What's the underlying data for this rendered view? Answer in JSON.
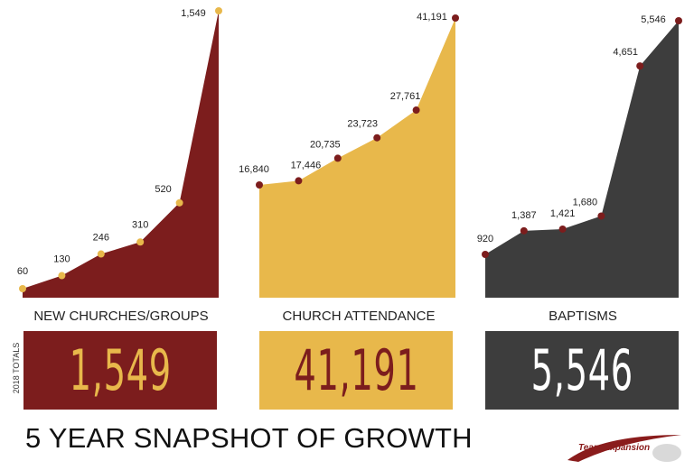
{
  "chart_data": [
    {
      "type": "area",
      "title": "NEW CHURCHES/GROUPS",
      "values": [
        60,
        130,
        246,
        310,
        520,
        1549
      ],
      "labels": [
        "60",
        "130",
        "246",
        "310",
        "520",
        "1,549"
      ],
      "total": "1,549",
      "fill_color": "#7c1d1d",
      "marker_color": "#e8b84b",
      "box_color": "#7c1d1d",
      "total_text_color": "#e8b84b"
    },
    {
      "type": "area",
      "title": "CHURCH ATTENDANCE",
      "values": [
        16840,
        17446,
        20735,
        23723,
        27761,
        41191
      ],
      "labels": [
        "16,840",
        "17,446",
        "20,735",
        "23,723",
        "27,761",
        "41,191"
      ],
      "total": "41,191",
      "fill_color": "#e8b84b",
      "marker_color": "#7c1d1d",
      "box_color": "#e8b84b",
      "total_text_color": "#7c1d1d"
    },
    {
      "type": "area",
      "title": "BAPTISMS",
      "values": [
        920,
        1387,
        1421,
        1680,
        4651,
        5546
      ],
      "labels": [
        "920",
        "1,387",
        "1,421",
        "1,680",
        "4,651",
        "5,546"
      ],
      "total": "5,546",
      "fill_color": "#3d3d3d",
      "marker_color": "#7c1d1d",
      "box_color": "#3d3d3d",
      "total_text_color": "#ffffff"
    }
  ],
  "side_label": "2018 TOTALS",
  "footer_title": "5 YEAR SNAPSHOT OF GROWTH",
  "logo": {
    "text": "Team Expansion"
  }
}
